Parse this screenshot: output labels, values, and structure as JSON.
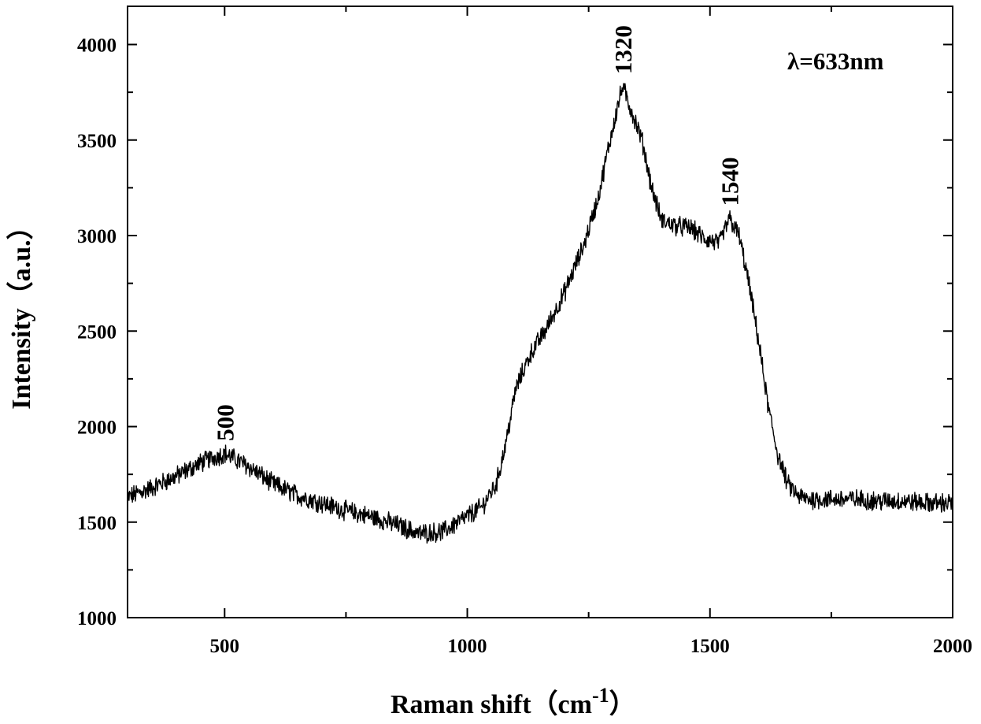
{
  "chart_data": {
    "type": "line",
    "title": "",
    "xlabel": "Raman shift（cm",
    "xlabel_sup": "-1",
    "xlabel_close": "）",
    "ylabel": "Intensity（a.u.）",
    "xlim": [
      300,
      2000
    ],
    "ylim": [
      1000,
      4200
    ],
    "xticks": [
      500,
      1000,
      1500,
      2000
    ],
    "xtick_labels": [
      "500",
      "1000",
      "1500",
      "2000"
    ],
    "yticks": [
      1000,
      1500,
      2000,
      2500,
      3000,
      3500,
      4000
    ],
    "ytick_labels": [
      "1000",
      "1500",
      "2000",
      "2500",
      "3000",
      "3500",
      "4000"
    ],
    "grid": false,
    "legend": null,
    "annotation": "λ=633nm",
    "peaks": [
      {
        "x": 500,
        "y": 1900,
        "label": "500"
      },
      {
        "x": 1320,
        "y": 3820,
        "label": "1320"
      },
      {
        "x": 1540,
        "y": 3130,
        "label": "1540"
      }
    ],
    "series": [
      {
        "line_color": "#000000",
        "noise_amplitude": 45,
        "x": [
          300,
          350,
          400,
          450,
          500,
          550,
          600,
          650,
          700,
          750,
          800,
          850,
          900,
          950,
          1000,
          1030,
          1060,
          1080,
          1100,
          1130,
          1160,
          1200,
          1240,
          1270,
          1290,
          1310,
          1320,
          1340,
          1360,
          1380,
          1400,
          1430,
          1460,
          1490,
          1520,
          1540,
          1560,
          1580,
          1600,
          1620,
          1640,
          1660,
          1680,
          1700,
          1750,
          1800,
          1850,
          1900,
          1950,
          2000
        ],
        "y": [
          1630,
          1680,
          1740,
          1810,
          1860,
          1790,
          1700,
          1640,
          1600,
          1560,
          1530,
          1490,
          1440,
          1450,
          1530,
          1580,
          1700,
          1920,
          2200,
          2380,
          2500,
          2700,
          2950,
          3200,
          3450,
          3680,
          3780,
          3640,
          3500,
          3250,
          3080,
          3050,
          3040,
          2980,
          2960,
          3090,
          3000,
          2750,
          2450,
          2100,
          1850,
          1700,
          1640,
          1620,
          1620,
          1620,
          1610,
          1610,
          1600,
          1600
        ]
      }
    ]
  }
}
